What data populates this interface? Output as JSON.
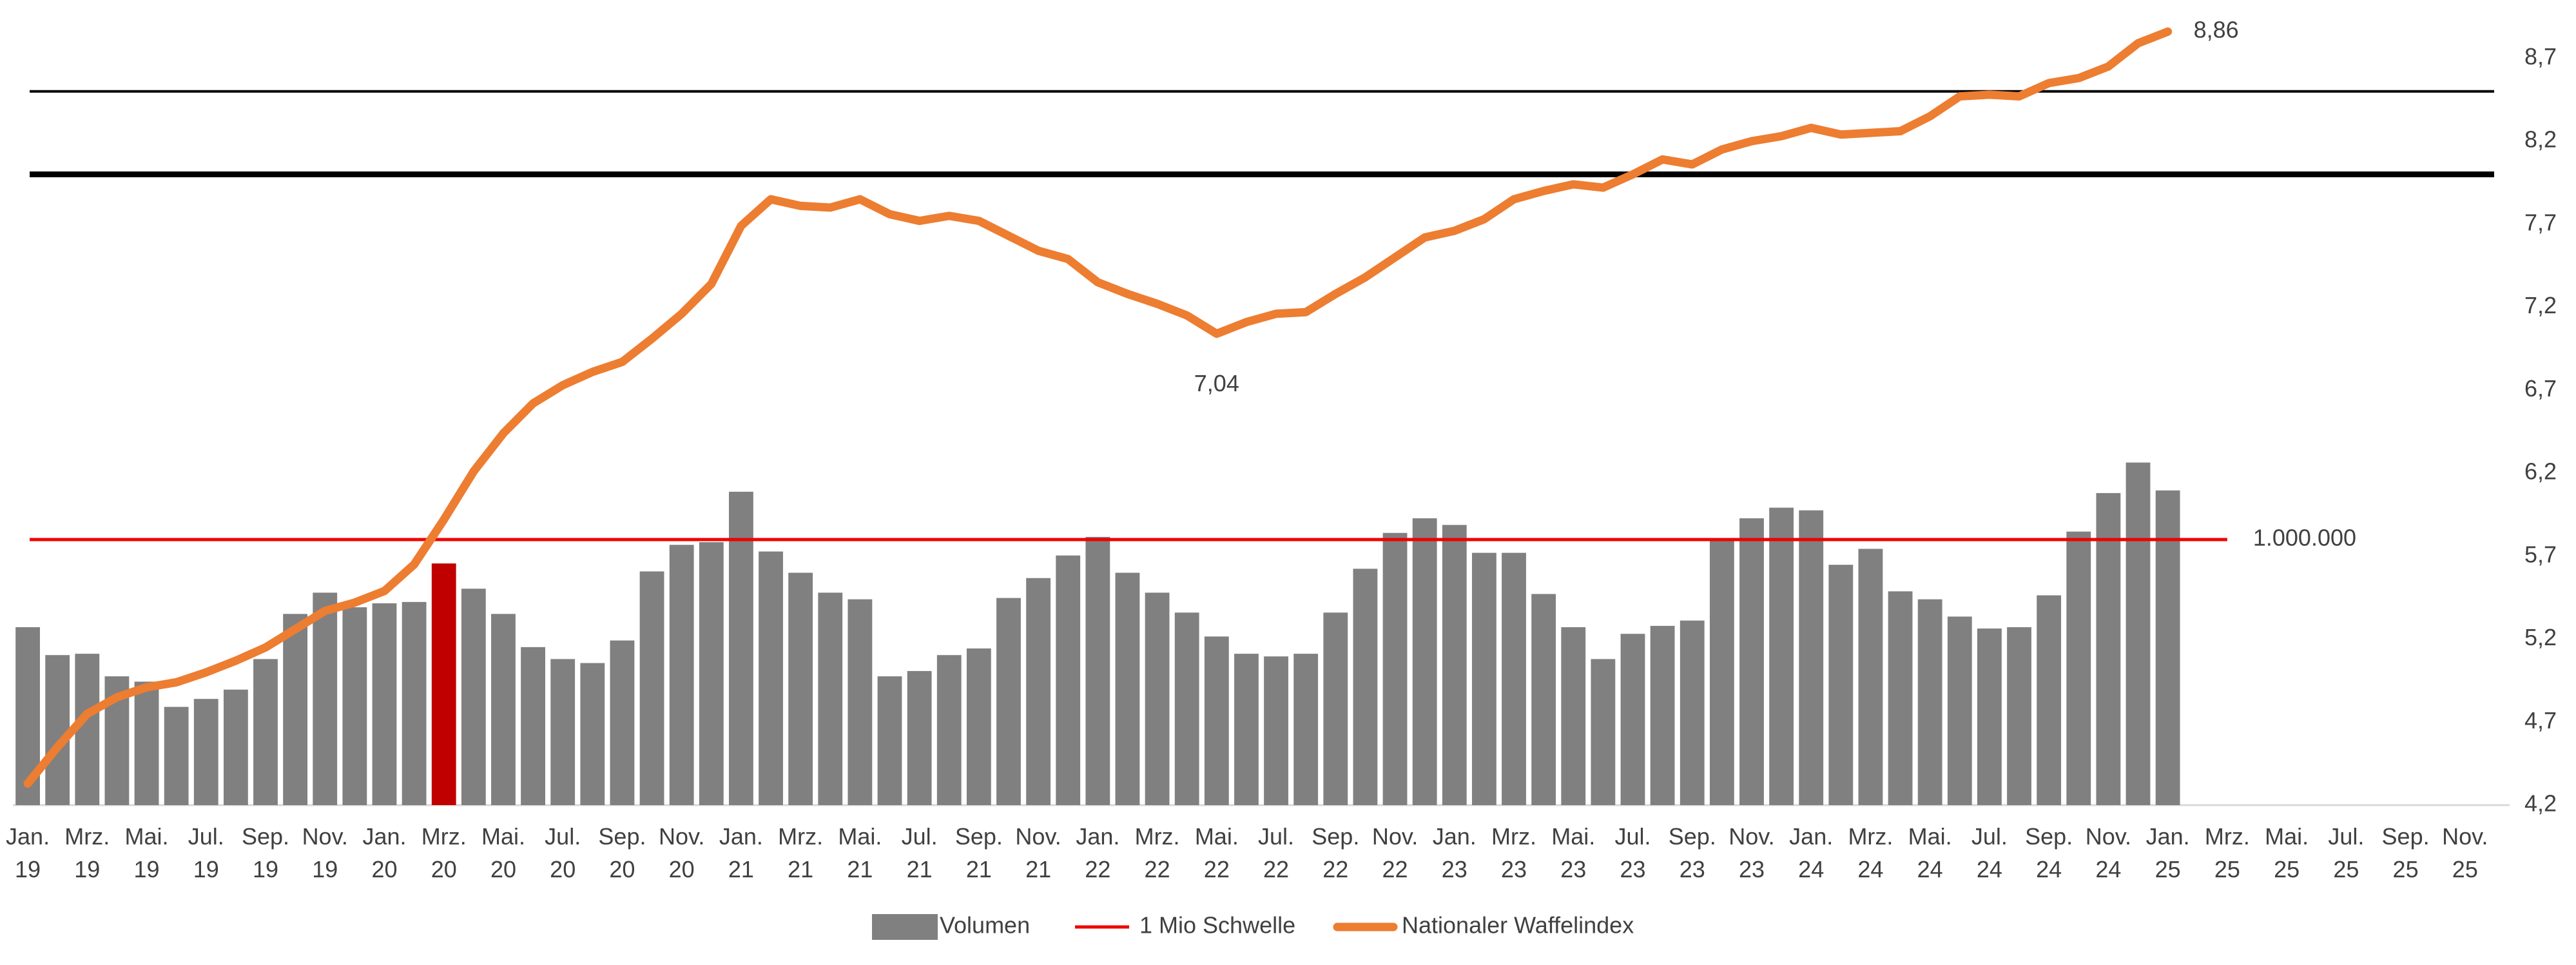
{
  "chart_data": {
    "type": "combo",
    "categories": [
      "Jan. 19",
      null,
      "Mrz. 19",
      null,
      "Mai. 19",
      null,
      "Jul. 19",
      null,
      "Sep. 19",
      null,
      "Nov. 19",
      null,
      "Jan. 20",
      null,
      "Mrz. 20",
      null,
      "Mai. 20",
      null,
      "Jul. 20",
      null,
      "Sep. 20",
      null,
      "Nov. 20",
      null,
      "Jan. 21",
      null,
      "Mrz. 21",
      null,
      "Mai. 21",
      null,
      "Jul. 21",
      null,
      "Sep. 21",
      null,
      "Nov. 21",
      null,
      "Jan. 22",
      null,
      "Mrz. 22",
      null,
      "Mai. 22",
      null,
      "Jul. 22",
      null,
      "Sep. 22",
      null,
      "Nov. 22",
      null,
      "Jan. 23",
      null,
      "Mrz. 23",
      null,
      "Mai. 23",
      null,
      "Jul. 23",
      null,
      "Sep. 23",
      null,
      "Nov. 23",
      null,
      "Jan. 24",
      null,
      "Mrz. 24",
      null,
      "Mai. 24",
      null,
      "Jul. 24",
      null,
      "Sep. 24",
      null,
      "Nov. 24",
      null,
      "Jan. 25",
      null,
      "Mrz. 25",
      null,
      "Mai. 25",
      null,
      "Jul. 25",
      null,
      "Sep. 25",
      null,
      "Nov. 25",
      null
    ],
    "series": [
      {
        "name": "Volumen",
        "type": "bar",
        "color": "#808080",
        "highlight_category": "Mrz. 20",
        "highlight_color": "#c00000",
        "values": [
          670000,
          565000,
          570000,
          485000,
          465000,
          370000,
          400000,
          435000,
          550000,
          720000,
          800000,
          745000,
          760000,
          765000,
          910000,
          815000,
          720000,
          595000,
          550000,
          535000,
          620000,
          880000,
          980000,
          990000,
          1180000,
          955000,
          875000,
          800000,
          775000,
          485000,
          505000,
          565000,
          590000,
          780000,
          855000,
          940000,
          1010000,
          875000,
          800000,
          725000,
          635000,
          570000,
          560000,
          570000,
          725000,
          890000,
          1025000,
          1080000,
          1055000,
          950000,
          950000,
          795000,
          670000,
          550000,
          645000,
          675000,
          695000,
          1005000,
          1080000,
          1120000,
          1110000,
          905000,
          965000,
          805000,
          775000,
          710000,
          665000,
          670000,
          790000,
          1030000,
          1175000,
          1290000,
          1185000,
          null,
          null,
          null,
          null,
          null,
          null,
          null,
          null,
          null,
          null,
          null
        ]
      },
      {
        "name": "Nationaler Waffelindex",
        "type": "line",
        "axis": "y2",
        "color": "#ed7d31",
        "values": [
          4.33,
          4.55,
          4.75,
          4.85,
          4.91,
          4.94,
          5.0,
          5.07,
          5.15,
          5.26,
          5.37,
          5.42,
          5.49,
          5.65,
          5.92,
          6.21,
          6.44,
          6.62,
          6.73,
          6.81,
          6.87,
          7.01,
          7.16,
          7.34,
          7.69,
          7.85,
          7.81,
          7.8,
          7.85,
          7.76,
          7.72,
          7.75,
          7.72,
          7.63,
          7.54,
          7.49,
          7.35,
          7.28,
          7.22,
          7.15,
          7.04,
          7.11,
          7.16,
          7.17,
          7.28,
          7.38,
          7.5,
          7.62,
          7.66,
          7.73,
          7.85,
          7.9,
          7.94,
          7.92,
          8.0,
          8.09,
          8.06,
          8.15,
          8.2,
          8.23,
          8.28,
          8.24,
          8.25,
          8.26,
          8.35,
          8.47,
          8.48,
          8.47,
          8.55,
          8.58,
          8.65,
          8.79,
          8.86,
          null,
          null,
          null,
          null,
          null,
          null,
          null,
          null,
          null,
          null,
          null
        ],
        "value_labels": [
          null,
          null,
          null,
          null,
          null,
          null,
          null,
          null,
          null,
          null,
          null,
          null,
          null,
          null,
          null,
          null,
          null,
          null,
          null,
          null,
          null,
          null,
          null,
          null,
          null,
          null,
          null,
          null,
          null,
          null,
          null,
          null,
          null,
          null,
          null,
          null,
          null,
          null,
          null,
          null,
          "7,04",
          null,
          null,
          null,
          null,
          null,
          null,
          null,
          null,
          null,
          null,
          null,
          null,
          null,
          null,
          null,
          null,
          null,
          null,
          null,
          null,
          null,
          null,
          null,
          null,
          null,
          null,
          null,
          null,
          null,
          null,
          null,
          "8,86",
          null,
          null,
          null,
          null,
          null,
          null,
          null,
          null,
          null,
          null,
          null
        ]
      }
    ],
    "threshold": {
      "name": "1 Mio Schwelle",
      "color": "#ee0000",
      "value": 1000000,
      "value_label": "1.000.000"
    },
    "reference_lines": [
      {
        "value": 8.5,
        "axis": "y2",
        "color": "#000000",
        "bold": false
      },
      {
        "value": 8.0,
        "axis": "y2",
        "color": "#000000",
        "bold": true
      }
    ],
    "ylim": [
      0,
      3000000
    ],
    "y2lim": [
      4.2,
      9.0
    ],
    "y2ticks": [
      {
        "value": 4.2,
        "label": "4,2"
      },
      {
        "value": 4.7,
        "label": "4,7"
      },
      {
        "value": 5.2,
        "label": "5,2"
      },
      {
        "value": 5.7,
        "label": "5,7"
      },
      {
        "value": 6.2,
        "label": "6,2"
      },
      {
        "value": 6.7,
        "label": "6,7"
      },
      {
        "value": 7.2,
        "label": "7,2"
      },
      {
        "value": 7.7,
        "label": "7,7"
      },
      {
        "value": 8.2,
        "label": "8,2"
      },
      {
        "value": 8.7,
        "label": "8,7"
      }
    ],
    "legend": "bottom"
  }
}
